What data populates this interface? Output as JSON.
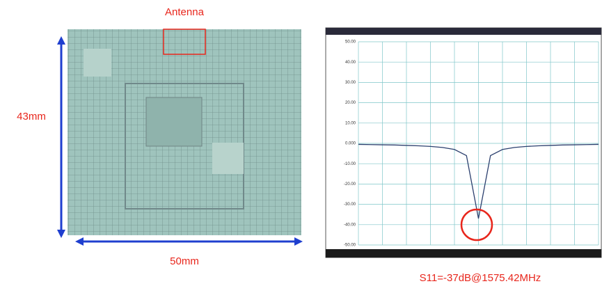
{
  "photo": {
    "antenna_label": "Antenna",
    "height_label": "43mm",
    "width_label": "50mm"
  },
  "vna_plot": {
    "ylim": [
      -50,
      50
    ],
    "yticks": [
      {
        "value": 50,
        "label": "50.00"
      },
      {
        "value": 40,
        "label": "40.00"
      },
      {
        "value": 30,
        "label": "30.00"
      },
      {
        "value": 20,
        "label": "20.00"
      },
      {
        "value": 10,
        "label": "10.00"
      },
      {
        "value": 0,
        "label": "0.000"
      },
      {
        "value": -10,
        "label": "-10.00"
      },
      {
        "value": -20,
        "label": "-20.00"
      },
      {
        "value": -30,
        "label": "-30.00"
      },
      {
        "value": -40,
        "label": "-40.00"
      },
      {
        "value": -50,
        "label": "-50.00"
      }
    ],
    "trace": {
      "color": "#2b3f6e",
      "values": [
        -0.5,
        -0.6,
        -0.7,
        -0.8,
        -1,
        -1.2,
        -1.5,
        -2,
        -3,
        -6,
        -37,
        -6,
        -3,
        -2,
        -1.5,
        -1.2,
        -1,
        -0.8,
        -0.7,
        -0.6,
        -0.5
      ]
    },
    "caption": "S11=-37dB@1575.42MHz"
  }
}
